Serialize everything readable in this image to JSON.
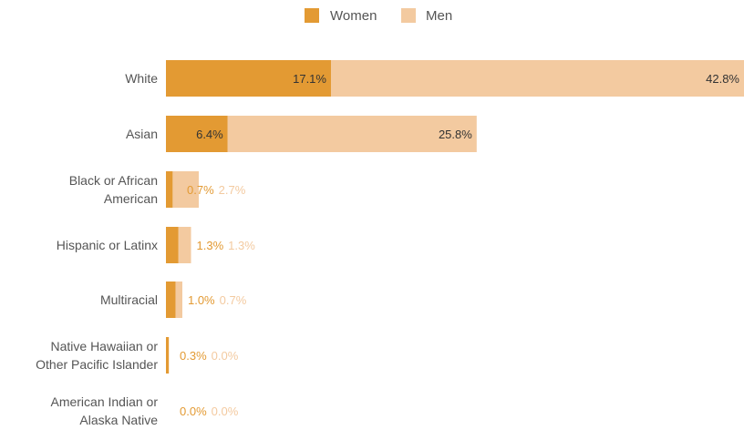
{
  "colors": {
    "women": "#e39a33",
    "men": "#f3caa0",
    "label_text": "#555555",
    "inside_value_text": "#333333"
  },
  "chart_data": {
    "type": "bar",
    "orientation": "horizontal",
    "stacked": true,
    "legend": {
      "position": "top-center",
      "items": [
        "Women",
        "Men"
      ]
    },
    "categories": [
      "White",
      "Asian",
      "Black or African American",
      "Hispanic or Latinx",
      "Multiracial",
      "Native Hawaiian or Other Pacific Islander",
      "American Indian or Alaska Native"
    ],
    "category_lines": [
      [
        "White"
      ],
      [
        "Asian"
      ],
      [
        "Black or African",
        "American"
      ],
      [
        "Hispanic or Latinx"
      ],
      [
        "Multiracial"
      ],
      [
        "Native Hawaiian or",
        "Other Pacific Islander"
      ],
      [
        "American Indian or",
        "Alaska Native"
      ]
    ],
    "series": [
      {
        "name": "Women",
        "values": [
          17.1,
          6.4,
          0.7,
          1.3,
          1.0,
          0.3,
          0.0
        ],
        "labels": [
          "17.1%",
          "6.4%",
          "0.7%",
          "1.3%",
          "1.0%",
          "0.3%",
          "0.0%"
        ]
      },
      {
        "name": "Men",
        "values": [
          42.8,
          25.8,
          2.7,
          1.3,
          0.7,
          0.0,
          0.0
        ],
        "labels": [
          "42.8%",
          "25.8%",
          "2.7%",
          "1.3%",
          "0.7%",
          "0.0%",
          "0.0%"
        ]
      }
    ],
    "xlim": [
      0,
      60
    ],
    "grid": false
  }
}
